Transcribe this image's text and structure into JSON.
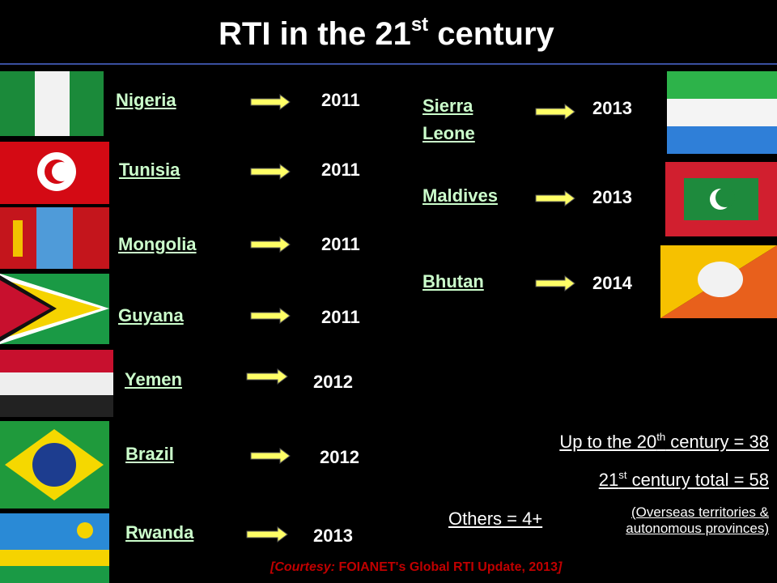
{
  "title": {
    "main": "RTI in the 21",
    "sup": "st",
    "rest": " century"
  },
  "left_countries": [
    {
      "name": "Nigeria",
      "year": "2011"
    },
    {
      "name": "Tunisia",
      "year": "2011"
    },
    {
      "name": "Mongolia",
      "year": "2011"
    },
    {
      "name": "Guyana",
      "year": "2011"
    },
    {
      "name": "Yemen",
      "year": "2012"
    },
    {
      "name": "Brazil",
      "year": "2012"
    },
    {
      "name": "Rwanda",
      "year": "2013"
    }
  ],
  "right_countries": [
    {
      "name_lines": [
        "Sierra",
        "Leone"
      ],
      "year": "2013"
    },
    {
      "name": "Maldives",
      "year": "2013"
    },
    {
      "name": "Bhutan",
      "year": "2014"
    }
  ],
  "totals": {
    "twentieth": {
      "pre": "Up to the 20",
      "sup": "th",
      "post": " century = 38"
    },
    "twentyfirst": {
      "pre": "21",
      "sup": "st",
      "post": " century total = 58"
    },
    "others": "Others = 4+",
    "others_note": [
      "(Overseas territories &",
      "autonomous provinces)"
    ]
  },
  "courtesy": {
    "open": "[Courtesy: ",
    "source": "FOIANET's Global RTI Update, 2013",
    "close": "]"
  }
}
